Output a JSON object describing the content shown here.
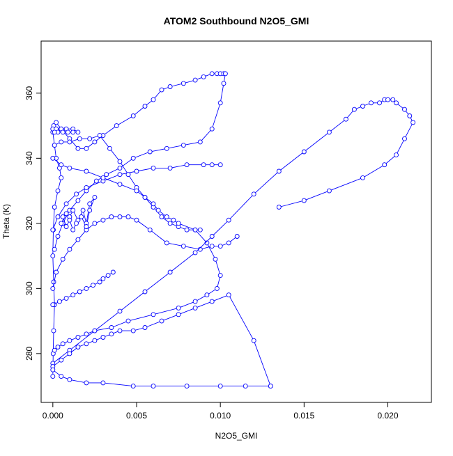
{
  "chart_data": {
    "type": "line",
    "title": "ATOM2 Southbound N2O5_GMI",
    "xlabel": "N2O5_GMI",
    "ylabel": "Theta (K)",
    "xlim": [
      -0.0007,
      0.0226
    ],
    "ylim": [
      265,
      376
    ],
    "x_ticks": [
      0.0,
      0.005,
      0.01,
      0.015,
      0.02
    ],
    "x_tick_labels": [
      "0.000",
      "0.005",
      "0.010",
      "0.015",
      "0.020"
    ],
    "y_ticks": [
      280,
      300,
      320,
      340,
      360
    ],
    "y_tick_labels": [
      "280",
      "300",
      "320",
      "340",
      "360"
    ],
    "grid": false,
    "marker": "open-circle",
    "series_color": "#0000ff",
    "series": [
      {
        "x": [
          0.0,
          2e-05,
          5e-05,
          0.0001,
          5e-05,
          0.0,
          3e-05,
          0.0001,
          0.0003,
          0.0005,
          0.0004,
          0.0002,
          0.0001,
          0.0,
          5e-05,
          0.0002,
          0.0005,
          0.001,
          0.0015,
          0.002,
          0.0025,
          0.003,
          0.0038,
          0.0048,
          0.0055,
          0.006,
          0.0065,
          0.007,
          0.0078,
          0.0085,
          0.009,
          0.0095,
          0.0098,
          0.01,
          0.0102,
          0.0103,
          0.0102,
          0.01,
          0.0095,
          0.0088,
          0.0078,
          0.0068,
          0.0058,
          0.0048,
          0.004,
          0.0032,
          0.0026,
          0.002,
          0.0015,
          0.001,
          0.0006,
          0.0003,
          0.0001
        ],
        "y": [
          273,
          280,
          287,
          295,
          302,
          310,
          318,
          325,
          330,
          334,
          337,
          340,
          344,
          348,
          350,
          351,
          349,
          346,
          343,
          343,
          345,
          347,
          350,
          353,
          356,
          358,
          361,
          362,
          363,
          364,
          365,
          366,
          366,
          366,
          366,
          366,
          363,
          357,
          349,
          345,
          344,
          343,
          342,
          340,
          337,
          335,
          333,
          330,
          327,
          324,
          320,
          316,
          312
        ]
      },
      {
        "x": [
          0.0,
          0.0002,
          0.0006,
          0.001,
          0.0015,
          0.002,
          0.0025,
          0.003,
          0.0035,
          0.004,
          0.0045,
          0.005,
          0.0058,
          0.0068,
          0.0078,
          0.0088,
          0.0095,
          0.01,
          0.0105,
          0.011
        ],
        "y": [
          300,
          305,
          309,
          312,
          315,
          318,
          320,
          321,
          322,
          322,
          322,
          321,
          318,
          314,
          313,
          312,
          313,
          313,
          314,
          316
        ]
      },
      {
        "x": [
          0.0,
          0.0003,
          0.0008,
          0.0014,
          0.002,
          0.003,
          0.004,
          0.005,
          0.006,
          0.007,
          0.008,
          0.009,
          0.0095,
          0.01
        ],
        "y": [
          318,
          322,
          326,
          329,
          331,
          333,
          335,
          336,
          337,
          337,
          338,
          338,
          338,
          338
        ]
      },
      {
        "x": [
          0.0001,
          0.0005,
          0.001,
          0.0016,
          0.0022,
          0.0028,
          0.0034,
          0.004,
          0.0045,
          0.005,
          0.0055,
          0.006,
          0.0065,
          0.007,
          0.0075,
          0.008,
          0.0085,
          0.0088
        ],
        "y": [
          344,
          345,
          345,
          346,
          346,
          347,
          343,
          339,
          335,
          331,
          328,
          325,
          322,
          320,
          319,
          318,
          318,
          318
        ]
      },
      {
        "x": [
          0.0,
          0.0005,
          0.001,
          0.002,
          0.003,
          0.004,
          0.005,
          0.0055,
          0.006,
          0.0063,
          0.0068,
          0.0072,
          0.0075,
          0.0085,
          0.0092,
          0.0097,
          0.01,
          0.0098,
          0.0092,
          0.0085,
          0.0075,
          0.006,
          0.0045,
          0.0035,
          0.0025,
          0.002,
          0.0015,
          0.001,
          0.0006,
          0.0003,
          0.0001
        ],
        "y": [
          340,
          338,
          337,
          336,
          334,
          332,
          330,
          328,
          326,
          324,
          322,
          321,
          320,
          318,
          314,
          309,
          304,
          300,
          298,
          296,
          294,
          292,
          290,
          288,
          287,
          286,
          285,
          284,
          283,
          282,
          281
        ]
      },
      {
        "x": [
          0.0,
          0.001,
          0.0025,
          0.004,
          0.0055,
          0.007,
          0.0085,
          0.0095,
          0.0105,
          0.012,
          0.0135,
          0.015,
          0.0165,
          0.0175,
          0.018,
          0.0185,
          0.019,
          0.0195,
          0.0198,
          0.02,
          0.0203,
          0.0205,
          0.021,
          0.0213,
          0.0215,
          0.021,
          0.0205,
          0.0198,
          0.0185,
          0.0165,
          0.015,
          0.0135
        ],
        "y": [
          277,
          281,
          287,
          293,
          299,
          305,
          311,
          316,
          321,
          329,
          336,
          342,
          348,
          352,
          355,
          356,
          357,
          357,
          358,
          358,
          358,
          357,
          355,
          353,
          351,
          346,
          341,
          338,
          334,
          330,
          327,
          325
        ]
      },
      {
        "x": [
          0.0,
          0.0005,
          0.001,
          0.0015,
          0.002,
          0.0025,
          0.003,
          0.0035,
          0.004,
          0.0048,
          0.0055,
          0.0065,
          0.0075,
          0.0085,
          0.0095,
          0.0105,
          0.012,
          0.013
        ],
        "y": [
          276,
          278,
          280,
          282,
          283,
          284,
          285,
          286,
          287,
          287,
          288,
          290,
          292,
          294,
          296,
          298,
          284,
          270
        ]
      },
      {
        "x": [
          0.0,
          0.0005,
          0.001,
          0.002,
          0.003,
          0.0048,
          0.006,
          0.008,
          0.01,
          0.0115,
          0.013
        ],
        "y": [
          275,
          273,
          272,
          271,
          271,
          270,
          270,
          270,
          270,
          270,
          270
        ]
      },
      {
        "x": [
          0.0005,
          0.0008,
          0.001,
          0.0012,
          0.0015,
          0.0018,
          0.002,
          0.0022,
          0.0025,
          0.0022,
          0.002,
          0.0017,
          0.0014,
          0.0012,
          0.001,
          0.0008,
          0.0006
        ],
        "y": [
          320,
          323,
          322,
          324,
          321,
          324,
          320,
          326,
          328,
          324,
          319,
          322,
          320,
          318,
          321,
          319,
          322
        ]
      },
      {
        "x": [
          0.0,
          0.0004,
          0.0008,
          0.0012,
          0.0016,
          0.002,
          0.0024,
          0.0028,
          0.003,
          0.0033,
          0.0036
        ],
        "y": [
          295,
          296,
          297,
          298,
          299,
          300,
          301,
          302,
          303,
          304,
          305
        ]
      },
      {
        "x": [
          0.0,
          0.0002,
          0.0005,
          0.0008,
          0.0012,
          0.0015,
          0.0012,
          0.0009,
          0.0006,
          0.0003,
          0.0001
        ],
        "y": [
          349,
          349,
          349,
          349,
          349,
          348,
          348,
          348,
          348,
          348,
          348
        ]
      }
    ]
  }
}
